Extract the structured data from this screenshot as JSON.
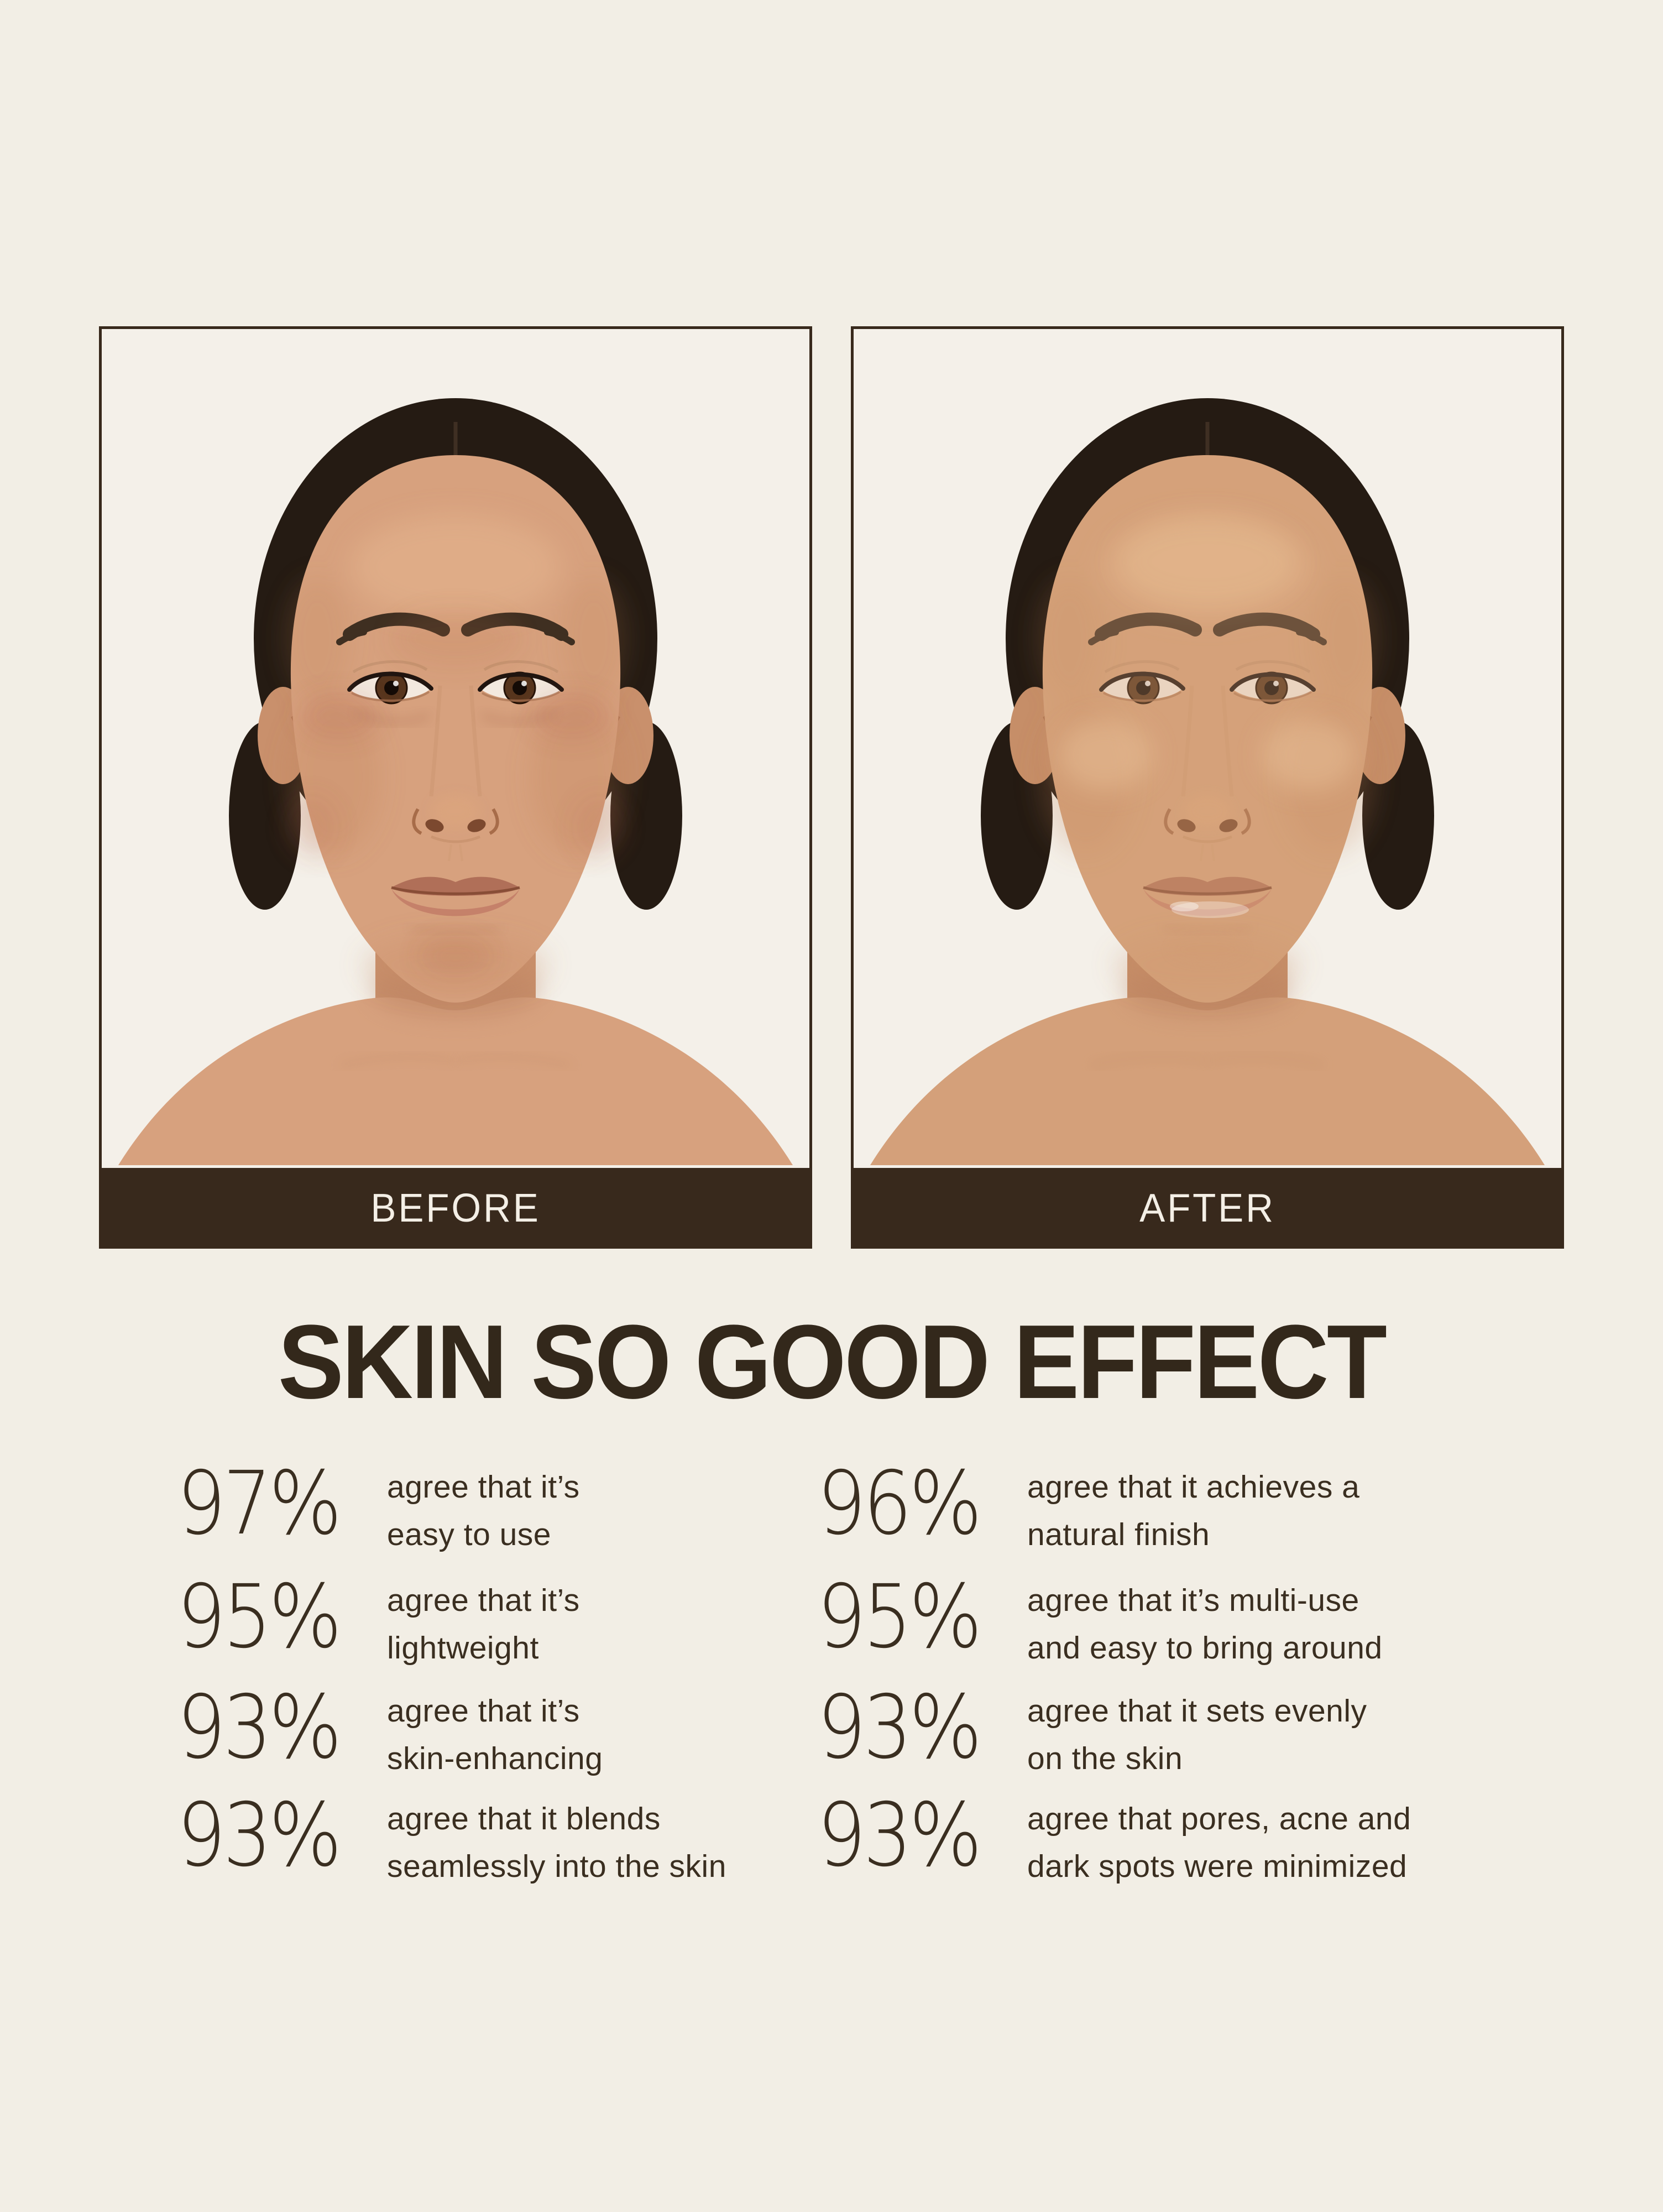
{
  "page": {
    "background": "#f2eee5"
  },
  "comparison": {
    "bar_color": "#38291c",
    "label_color": "#f4efe6",
    "panels": [
      {
        "id": "before",
        "label": "BEFORE",
        "photo": "woman-portrait-bare-skin"
      },
      {
        "id": "after",
        "label": "AFTER",
        "photo": "woman-portrait-even-finish"
      }
    ]
  },
  "headline": {
    "text": "SKIN SO GOOD EFFECT",
    "color": "#33281b"
  },
  "stats": {
    "text_color": "#3a2e20",
    "columns": [
      {
        "items": [
          {
            "value": "97%",
            "line1": "agree that it’s",
            "line2": "easy to use"
          },
          {
            "value": "95%",
            "line1": "agree that it’s",
            "line2": "lightweight"
          },
          {
            "value": "93%",
            "line1": "agree that it’s",
            "line2": "skin-enhancing"
          },
          {
            "value": "93%",
            "line1": "agree that it blends",
            "line2": "seamlessly into the skin"
          }
        ]
      },
      {
        "items": [
          {
            "value": "96%",
            "line1": "agree that it achieves a",
            "line2": "natural finish"
          },
          {
            "value": "95%",
            "line1": "agree that it’s multi-use",
            "line2": "and easy to bring around"
          },
          {
            "value": "93%",
            "line1": "agree that it sets evenly",
            "line2": "on the skin"
          },
          {
            "value": "93%",
            "line1": "agree that pores, acne and",
            "line2": "dark spots were minimized"
          }
        ]
      }
    ]
  },
  "portrait_colors": {
    "background": "#f4f0e9",
    "hair": "#251b13",
    "skin_before": "#d7a17e",
    "skin_after": "#d4a07a",
    "lip_before": "#b06f58",
    "lip_after": "#c5816a"
  }
}
